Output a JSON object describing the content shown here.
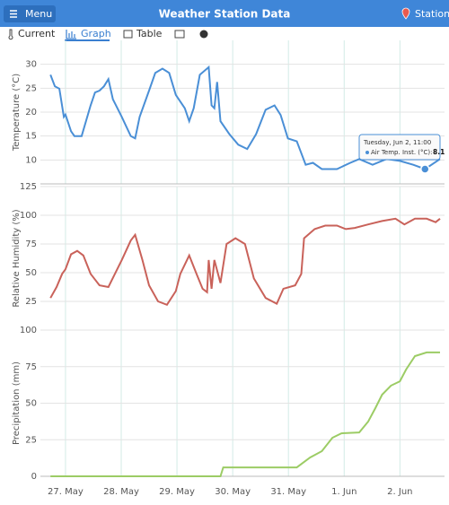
{
  "header": {
    "menu": "Menu",
    "title": "Weather Station Data",
    "station": "Station"
  },
  "tabs": [
    "Current",
    "Graph",
    "Table"
  ],
  "chart_data": [
    {
      "type": "line",
      "y_label": "Temperature (°C)",
      "xlim": [
        26.55,
        33.8
      ],
      "ylim": [
        5,
        35
      ],
      "yticks": [
        10,
        15,
        20,
        25,
        30
      ],
      "x": [
        26.73,
        26.81,
        26.89,
        26.97,
        27.0,
        27.1,
        27.16,
        27.29,
        27.45,
        27.53,
        27.61,
        27.69,
        27.77,
        27.85,
        28.01,
        28.17,
        28.25,
        28.33,
        28.5,
        28.61,
        28.74,
        28.86,
        28.98,
        29.14,
        29.22,
        29.3,
        29.41,
        29.57,
        29.62,
        29.67,
        29.72,
        29.78,
        29.94,
        30.1,
        30.26,
        30.42,
        30.59,
        30.75,
        30.86,
        30.99,
        31.15,
        31.31,
        31.44,
        31.6,
        31.87,
        32.11,
        32.27,
        32.51,
        32.76,
        33.0,
        33.24,
        33.45,
        33.72
      ],
      "series": [
        {
          "color": "#4a8fd6",
          "values": [
            27.8,
            25.4,
            24.9,
            19,
            19.5,
            16,
            15,
            15,
            21.4,
            24.1,
            24.5,
            25.4,
            26.9,
            22.7,
            19,
            15,
            14.5,
            19,
            24.5,
            28.2,
            29.1,
            28.2,
            23.6,
            20.8,
            18.1,
            20.8,
            27.8,
            29.4,
            21.4,
            20.8,
            26.3,
            18.1,
            15.4,
            13.2,
            12.3,
            15.4,
            20.5,
            21.4,
            19.4,
            14.5,
            13.9,
            9,
            9.4,
            8.1,
            8.1,
            9.4,
            10.2,
            9,
            10.2,
            9.8,
            9,
            8.1,
            10.2
          ]
        }
      ],
      "tooltip": {
        "title": "Tuesday, Jun 2, 11:00",
        "label": "Air Temp. Inst. (°C):",
        "value": 8.1
      }
    },
    {
      "type": "line",
      "y_label": "Relative Humidity (%)",
      "xlim": [
        26.55,
        33.8
      ],
      "ylim": [
        0,
        125
      ],
      "yticks": [
        25,
        50,
        75,
        100,
        125
      ],
      "x": [
        26.73,
        26.84,
        26.94,
        27.0,
        27.1,
        27.21,
        27.32,
        27.45,
        27.61,
        27.77,
        28.01,
        28.17,
        28.25,
        28.38,
        28.5,
        28.66,
        28.82,
        28.98,
        29.06,
        29.22,
        29.35,
        29.46,
        29.54,
        29.57,
        29.62,
        29.67,
        29.78,
        29.89,
        30.05,
        30.22,
        30.38,
        30.59,
        30.79,
        30.91,
        31.12,
        31.23,
        31.28,
        31.47,
        31.66,
        31.87,
        32.03,
        32.19,
        32.43,
        32.68,
        32.92,
        33.08,
        33.27,
        33.48,
        33.64,
        33.72
      ],
      "series": [
        {
          "color": "#c9625a",
          "values": [
            28,
            37.5,
            49,
            53,
            66,
            69,
            65,
            49,
            39,
            37.5,
            61,
            78,
            83,
            61,
            39,
            25,
            22,
            34,
            49,
            65,
            49,
            36,
            33,
            61,
            36,
            61,
            41,
            75,
            80,
            75,
            45,
            28,
            23,
            36,
            39,
            49,
            80,
            88,
            91,
            91,
            88,
            89,
            92,
            95,
            97,
            92,
            97,
            97,
            94,
            97
          ]
        }
      ]
    },
    {
      "type": "line",
      "y_label": "Precipitation (mm)",
      "xlim": [
        26.55,
        33.8
      ],
      "ylim": [
        0,
        100
      ],
      "yticks": [
        0,
        25,
        50,
        75,
        100
      ],
      "xticks": [
        {
          "value": 27,
          "label": "27. May"
        },
        {
          "value": 28,
          "label": "28. May"
        },
        {
          "value": 29,
          "label": "29. May"
        },
        {
          "value": 30,
          "label": "30. May"
        },
        {
          "value": 31,
          "label": "31. May"
        },
        {
          "value": 32,
          "label": "1. Jun"
        },
        {
          "value": 33,
          "label": "2. Jun"
        }
      ],
      "x": [
        26.73,
        29.78,
        29.83,
        31.15,
        31.39,
        31.6,
        31.79,
        31.95,
        32.27,
        32.43,
        32.56,
        32.68,
        32.84,
        33.0,
        33.11,
        33.27,
        33.48,
        33.72
      ],
      "series": [
        {
          "color": "#9ccc65",
          "values": [
            0,
            0,
            6.1,
            6.1,
            12.9,
            17.2,
            26.4,
            29.4,
            30,
            37.4,
            46.6,
            55.8,
            62,
            65,
            73,
            82.2,
            84.7,
            84.7
          ]
        }
      ]
    }
  ]
}
